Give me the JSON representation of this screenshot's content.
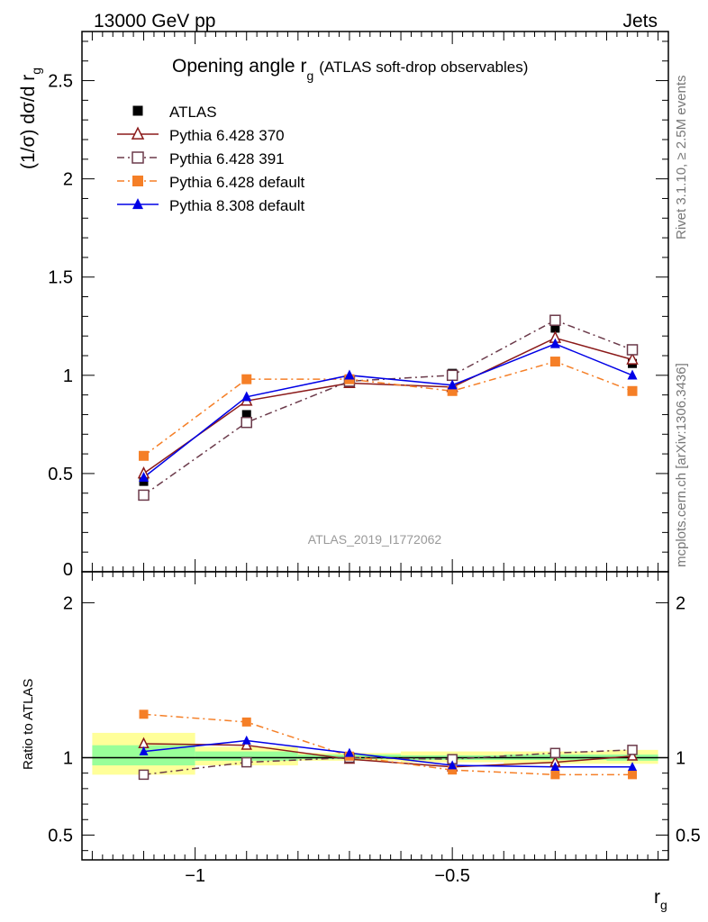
{
  "header": {
    "left": "13000 GeV pp",
    "right": "Jets"
  },
  "side_text": {
    "top": "Rivet 3.1.10, ≥ 2.5M events",
    "bottom": "mcplots.cern.ch [arXiv:1306.3436]"
  },
  "chart_data": [
    {
      "type": "line",
      "title": "Opening angle r",
      "title_sub": "g",
      "subtitle": "(ATLAS soft-drop observables)",
      "ylabel": "(1/σ) dσ/d r",
      "ylabel_sub": "g",
      "watermark": "ATLAS_2019_I1772062",
      "ylim": [
        0,
        2.75
      ],
      "xlim": [
        -1.22,
        -0.08
      ],
      "yticks": [
        0.5,
        1,
        1.5,
        2,
        2.5
      ],
      "ytick_labels": [
        "0.5",
        "1",
        "1.5",
        "2",
        "2.5"
      ],
      "ytick_zero_label": "0",
      "x": [
        -1.1,
        -0.9,
        -0.7,
        -0.5,
        -0.3,
        -0.15
      ],
      "data": {
        "name": "ATLAS",
        "x": [
          -1.1,
          -0.9,
          -0.7,
          -0.5,
          -0.3,
          -0.15
        ],
        "y": [
          0.46,
          0.8,
          0.97,
          1.01,
          1.24,
          1.06
        ],
        "color": "#000000"
      },
      "series": [
        {
          "name": "Pythia 6.428 370",
          "color": "#8b1a1a",
          "marker": "triangle-open",
          "dash": "",
          "y": [
            0.5,
            0.87,
            0.96,
            0.94,
            1.19,
            1.08
          ]
        },
        {
          "name": "Pythia 6.428 391",
          "color": "#6b3a4a",
          "marker": "square-open",
          "dash": "8,4,2,4",
          "y": [
            0.39,
            0.76,
            0.97,
            1.0,
            1.28,
            1.13
          ]
        },
        {
          "name": "Pythia 6.428 default",
          "color": "#f57f27",
          "marker": "square-filled",
          "dash": "8,4,2,4",
          "y": [
            0.59,
            0.98,
            0.98,
            0.92,
            1.07,
            0.92
          ]
        },
        {
          "name": "Pythia 8.308 default",
          "color": "#0000e6",
          "marker": "triangle-filled",
          "dash": "",
          "y": [
            0.48,
            0.89,
            1.0,
            0.95,
            1.16,
            1.0
          ]
        }
      ]
    },
    {
      "type": "line",
      "ylabel": "Ratio to ATLAS",
      "xlabel": "r",
      "xlabel_sub": "g",
      "ylim": [
        0.34,
        2.2
      ],
      "xlim": [
        -1.22,
        -0.08
      ],
      "yticks": [
        0.5,
        1,
        2
      ],
      "ytick_labels": [
        "0.5",
        "1",
        "2"
      ],
      "xticks": [
        -1,
        -0.5
      ],
      "xtick_labels": [
        "−1",
        "−0.5"
      ],
      "bins": [
        [
          -1.2,
          -1.0
        ],
        [
          -1.0,
          -0.8
        ],
        [
          -0.8,
          -0.6
        ],
        [
          -0.6,
          -0.4
        ],
        [
          -0.4,
          -0.2
        ],
        [
          -0.2,
          -0.1
        ]
      ],
      "band_yellow": [
        [
          0.89,
          1.16
        ],
        [
          0.95,
          1.07
        ],
        [
          0.98,
          1.03
        ],
        [
          0.97,
          1.04
        ],
        [
          0.96,
          1.04
        ],
        [
          0.96,
          1.05
        ]
      ],
      "band_green": [
        [
          0.95,
          1.08
        ],
        [
          0.98,
          1.04
        ],
        [
          0.99,
          1.02
        ],
        [
          0.985,
          1.015
        ],
        [
          0.985,
          1.02
        ],
        [
          0.98,
          1.02
        ]
      ],
      "band_colors": {
        "yellow": "#ffff99",
        "green": "#99ff99"
      },
      "x": [
        -1.1,
        -0.9,
        -0.7,
        -0.5,
        -0.3,
        -0.15
      ],
      "series": [
        {
          "name": "Pythia 6.428 370",
          "color": "#8b1a1a",
          "marker": "triangle-open",
          "dash": "",
          "y": [
            1.09,
            1.08,
            0.99,
            0.94,
            0.97,
            1.01
          ]
        },
        {
          "name": "Pythia 6.428 391",
          "color": "#6b3a4a",
          "marker": "square-open",
          "dash": "8,4,2,4",
          "y": [
            0.89,
            0.97,
            1.0,
            0.99,
            1.03,
            1.05
          ]
        },
        {
          "name": "Pythia 6.428 default",
          "color": "#f57f27",
          "marker": "square-filled",
          "dash": "8,4,2,4",
          "y": [
            1.28,
            1.23,
            1.01,
            0.92,
            0.89,
            0.89
          ]
        },
        {
          "name": "Pythia 8.308 default",
          "color": "#0000e6",
          "marker": "triangle-filled",
          "dash": "",
          "y": [
            1.04,
            1.11,
            1.03,
            0.95,
            0.94,
            0.94
          ]
        }
      ]
    }
  ]
}
